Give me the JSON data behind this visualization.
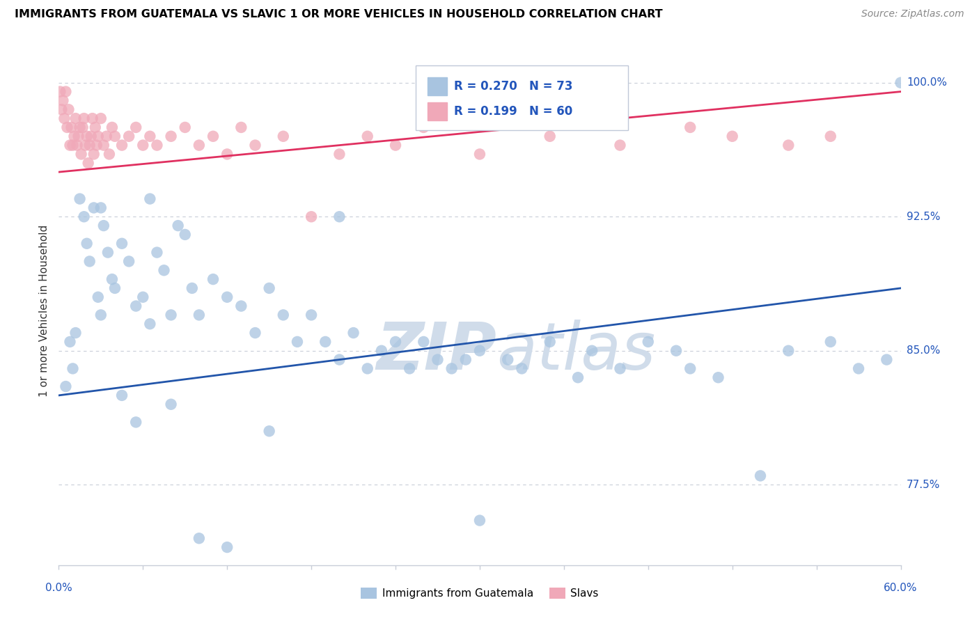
{
  "title": "IMMIGRANTS FROM GUATEMALA VS SLAVIC 1 OR MORE VEHICLES IN HOUSEHOLD CORRELATION CHART",
  "source": "Source: ZipAtlas.com",
  "x_min": 0.0,
  "x_max": 60.0,
  "y_min": 73.0,
  "y_max": 101.5,
  "legend_blue_R": "R = 0.270",
  "legend_blue_N": "N = 73",
  "legend_pink_R": "R = 0.199",
  "legend_pink_N": "N = 60",
  "blue_color": "#a8c4e0",
  "pink_color": "#f0a8b8",
  "blue_line_color": "#2255aa",
  "pink_line_color": "#e03060",
  "legend_text_color": "#2255bb",
  "watermark_color": "#d0dcea",
  "blue_scatter_x": [
    0.5,
    0.8,
    1.0,
    1.2,
    1.5,
    1.8,
    2.0,
    2.2,
    2.5,
    2.8,
    3.0,
    3.2,
    3.5,
    3.8,
    4.0,
    4.5,
    5.0,
    5.5,
    6.0,
    6.5,
    7.0,
    7.5,
    8.0,
    8.5,
    9.0,
    9.5,
    10.0,
    11.0,
    12.0,
    13.0,
    14.0,
    15.0,
    16.0,
    17.0,
    18.0,
    19.0,
    20.0,
    21.0,
    22.0,
    23.0,
    24.0,
    25.0,
    26.0,
    27.0,
    28.0,
    29.0,
    30.0,
    32.0,
    33.0,
    35.0,
    37.0,
    38.0,
    40.0,
    42.0,
    44.0,
    45.0,
    47.0,
    50.0,
    52.0,
    55.0,
    57.0,
    59.0,
    60.0,
    3.0,
    4.5,
    5.5,
    6.5,
    8.0,
    10.0,
    12.0,
    15.0,
    20.0,
    30.0
  ],
  "blue_scatter_y": [
    83.0,
    85.5,
    84.0,
    86.0,
    93.5,
    92.5,
    91.0,
    90.0,
    93.0,
    88.0,
    87.0,
    92.0,
    90.5,
    89.0,
    88.5,
    91.0,
    90.0,
    87.5,
    88.0,
    86.5,
    90.5,
    89.5,
    87.0,
    92.0,
    91.5,
    88.5,
    87.0,
    89.0,
    88.0,
    87.5,
    86.0,
    88.5,
    87.0,
    85.5,
    87.0,
    85.5,
    84.5,
    86.0,
    84.0,
    85.0,
    85.5,
    84.0,
    85.5,
    84.5,
    84.0,
    84.5,
    85.0,
    84.5,
    84.0,
    85.5,
    83.5,
    85.0,
    84.0,
    85.5,
    85.0,
    84.0,
    83.5,
    78.0,
    85.0,
    85.5,
    84.0,
    84.5,
    100.0,
    93.0,
    82.5,
    81.0,
    93.5,
    82.0,
    74.5,
    74.0,
    80.5,
    92.5,
    75.5
  ],
  "pink_scatter_x": [
    0.1,
    0.2,
    0.3,
    0.4,
    0.5,
    0.6,
    0.7,
    0.8,
    0.9,
    1.0,
    1.1,
    1.2,
    1.3,
    1.4,
    1.5,
    1.6,
    1.7,
    1.8,
    1.9,
    2.0,
    2.1,
    2.2,
    2.3,
    2.4,
    2.5,
    2.6,
    2.7,
    2.8,
    3.0,
    3.2,
    3.4,
    3.6,
    3.8,
    4.0,
    4.5,
    5.0,
    5.5,
    6.0,
    6.5,
    7.0,
    8.0,
    9.0,
    10.0,
    11.0,
    12.0,
    13.0,
    14.0,
    16.0,
    18.0,
    20.0,
    22.0,
    24.0,
    26.0,
    30.0,
    35.0,
    40.0,
    45.0,
    48.0,
    52.0,
    55.0
  ],
  "pink_scatter_y": [
    99.5,
    98.5,
    99.0,
    98.0,
    99.5,
    97.5,
    98.5,
    96.5,
    97.5,
    96.5,
    97.0,
    98.0,
    96.5,
    97.0,
    97.5,
    96.0,
    97.5,
    98.0,
    96.5,
    97.0,
    95.5,
    96.5,
    97.0,
    98.0,
    96.0,
    97.5,
    96.5,
    97.0,
    98.0,
    96.5,
    97.0,
    96.0,
    97.5,
    97.0,
    96.5,
    97.0,
    97.5,
    96.5,
    97.0,
    96.5,
    97.0,
    97.5,
    96.5,
    97.0,
    96.0,
    97.5,
    96.5,
    97.0,
    92.5,
    96.0,
    97.0,
    96.5,
    97.5,
    96.0,
    97.0,
    96.5,
    97.5,
    97.0,
    96.5,
    97.0
  ],
  "blue_trend_x": [
    0.0,
    60.0
  ],
  "blue_trend_y": [
    82.5,
    88.5
  ],
  "pink_trend_x": [
    0.0,
    60.0
  ],
  "pink_trend_y": [
    95.0,
    99.5
  ],
  "ytick_vals": [
    77.5,
    85.0,
    92.5,
    100.0
  ],
  "ytick_labels": [
    "77.5%",
    "85.0%",
    "92.5%",
    "100.0%"
  ]
}
